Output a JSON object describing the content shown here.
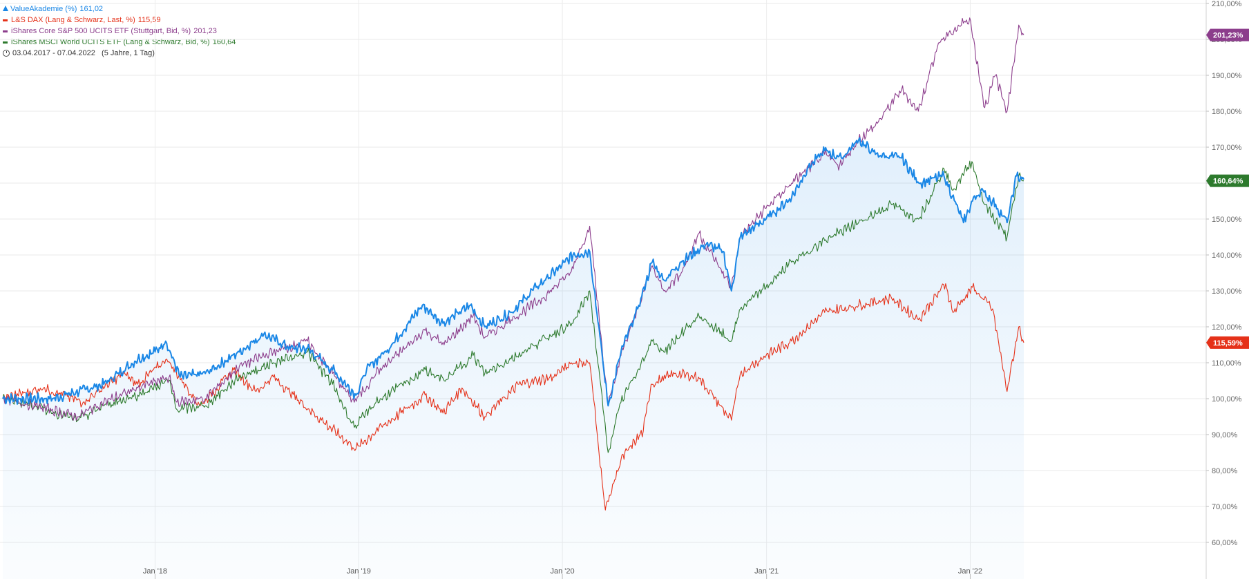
{
  "legend": {
    "items": [
      {
        "name": "ValueAkademie (%)",
        "value": "161,02",
        "color": "#1a87e6",
        "marker": "area-icon"
      },
      {
        "name": "L&S DAX (Lang & Schwarz, Last, %)",
        "value": "115,59",
        "color": "#e53119",
        "marker": "line-icon"
      },
      {
        "name": "iShares Core S&P 500 UCITS ETF (Stuttgart, Bid, %)",
        "value": "201,23",
        "color": "#8c3d8c",
        "marker": "line-icon"
      },
      {
        "name": "iShares MSCI World UCITS ETF (Lang & Schwarz, Bid, %)",
        "value": "160,64",
        "color": "#2d7a2d",
        "marker": "line-icon"
      }
    ],
    "date_range": "03.04.2017 - 07.04.2022   (5 Jahre, 1 Tag)"
  },
  "chart_data": {
    "type": "line",
    "x_ticks": [
      "Jan '18",
      "Jan '19",
      "Jan '20",
      "Jan '21",
      "Jan '22"
    ],
    "y_ticks": [
      "60,00%",
      "70,00%",
      "80,00%",
      "90,00%",
      "100,00%",
      "110,00%",
      "120,00%",
      "130,00%",
      "140,00%",
      "150,00%",
      "160,00%",
      "170,00%",
      "180,00%",
      "190,00%",
      "200,00%",
      "210,00%"
    ],
    "ylim": [
      57.5,
      215
    ],
    "xlim": [
      "2017-04-03",
      "2022-04-07"
    ],
    "grid": true,
    "series": [
      {
        "name": "ValueAkademie (%)",
        "color": "#1a87e6",
        "style": "area",
        "last_label": "",
        "points": [
          [
            "2017-04-03",
            100
          ],
          [
            "2017-07-01",
            100
          ],
          [
            "2017-10-01",
            104
          ],
          [
            "2017-12-01",
            111
          ],
          [
            "2018-01-01",
            113
          ],
          [
            "2018-01-20",
            116
          ],
          [
            "2018-02-15",
            106
          ],
          [
            "2018-04-01",
            107
          ],
          [
            "2018-06-01",
            113
          ],
          [
            "2018-07-15",
            118
          ],
          [
            "2018-09-01",
            114
          ],
          [
            "2018-10-01",
            114
          ],
          [
            "2018-11-15",
            108
          ],
          [
            "2018-12-27",
            101
          ],
          [
            "2019-01-15",
            108
          ],
          [
            "2019-03-01",
            115
          ],
          [
            "2019-04-25",
            126
          ],
          [
            "2019-06-01",
            121
          ],
          [
            "2019-07-20",
            126
          ],
          [
            "2019-08-15",
            120
          ],
          [
            "2019-10-01",
            124
          ],
          [
            "2019-11-15",
            131
          ],
          [
            "2019-12-31",
            137
          ],
          [
            "2020-01-20",
            140
          ],
          [
            "2020-02-19",
            141
          ],
          [
            "2020-03-23",
            98
          ],
          [
            "2020-04-15",
            113
          ],
          [
            "2020-05-15",
            125
          ],
          [
            "2020-06-10",
            138
          ],
          [
            "2020-07-01",
            133
          ],
          [
            "2020-08-01",
            138
          ],
          [
            "2020-09-15",
            143
          ],
          [
            "2020-10-15",
            141
          ],
          [
            "2020-10-30",
            130
          ],
          [
            "2020-11-15",
            145
          ],
          [
            "2020-12-31",
            150
          ],
          [
            "2021-02-15",
            156
          ],
          [
            "2021-03-15",
            164
          ],
          [
            "2021-04-15",
            169
          ],
          [
            "2021-05-15",
            167
          ],
          [
            "2021-06-15",
            172
          ],
          [
            "2021-07-15",
            168
          ],
          [
            "2021-08-31",
            167
          ],
          [
            "2021-10-01",
            160
          ],
          [
            "2021-11-15",
            162
          ],
          [
            "2021-12-20",
            149
          ],
          [
            "2022-01-05",
            155
          ],
          [
            "2022-01-20",
            158
          ],
          [
            "2022-02-10",
            155
          ],
          [
            "2022-03-08",
            149
          ],
          [
            "2022-03-25",
            162
          ],
          [
            "2022-04-07",
            161.02
          ]
        ]
      },
      {
        "name": "L&S DAX (Lang & Schwarz, Last, %)",
        "color": "#e53119",
        "style": "line",
        "last_label": "115,59%",
        "points": [
          [
            "2017-04-03",
            100
          ],
          [
            "2017-06-15",
            103
          ],
          [
            "2017-08-25",
            99
          ],
          [
            "2017-11-05",
            107
          ],
          [
            "2017-12-01",
            104
          ],
          [
            "2018-01-22",
            111
          ],
          [
            "2018-03-23",
            98
          ],
          [
            "2018-05-22",
            108
          ],
          [
            "2018-07-01",
            102
          ],
          [
            "2018-08-01",
            106
          ],
          [
            "2018-10-26",
            94
          ],
          [
            "2018-12-27",
            86
          ],
          [
            "2019-02-01",
            91
          ],
          [
            "2019-04-30",
            101
          ],
          [
            "2019-06-01",
            96
          ],
          [
            "2019-07-05",
            103
          ],
          [
            "2019-08-15",
            95
          ],
          [
            "2019-10-15",
            104
          ],
          [
            "2019-12-15",
            106
          ],
          [
            "2020-01-17",
            110
          ],
          [
            "2020-02-19",
            110
          ],
          [
            "2020-03-18",
            69
          ],
          [
            "2020-04-15",
            83
          ],
          [
            "2020-05-25",
            91
          ],
          [
            "2020-06-08",
            104
          ],
          [
            "2020-07-20",
            107
          ],
          [
            "2020-09-01",
            106
          ],
          [
            "2020-10-30",
            94
          ],
          [
            "2020-11-15",
            107
          ],
          [
            "2020-12-31",
            112
          ],
          [
            "2021-02-15",
            116
          ],
          [
            "2021-04-15",
            124
          ],
          [
            "2021-06-15",
            126
          ],
          [
            "2021-08-13",
            128
          ],
          [
            "2021-09-30",
            122
          ],
          [
            "2021-11-18",
            132
          ],
          [
            "2021-12-01",
            124
          ],
          [
            "2022-01-05",
            131
          ],
          [
            "2022-02-10",
            125
          ],
          [
            "2022-03-08",
            102
          ],
          [
            "2022-03-29",
            120
          ],
          [
            "2022-04-07",
            115.59
          ]
        ]
      },
      {
        "name": "iShares Core S&P 500 UCITS ETF (Stuttgart, Bid, %)",
        "color": "#8c3d8c",
        "style": "line",
        "last_label": "201,23%",
        "points": [
          [
            "2017-04-03",
            100
          ],
          [
            "2017-06-01",
            98
          ],
          [
            "2017-08-15",
            95
          ],
          [
            "2017-10-01",
            99
          ],
          [
            "2017-12-01",
            103
          ],
          [
            "2018-01-26",
            106
          ],
          [
            "2018-02-09",
            99
          ],
          [
            "2018-04-01",
            100
          ],
          [
            "2018-06-01",
            109
          ],
          [
            "2018-08-01",
            113
          ],
          [
            "2018-10-01",
            116
          ],
          [
            "2018-11-15",
            107
          ],
          [
            "2018-12-24",
            99
          ],
          [
            "2019-02-01",
            107
          ],
          [
            "2019-04-30",
            119
          ],
          [
            "2019-06-03",
            115
          ],
          [
            "2019-07-25",
            123
          ],
          [
            "2019-08-15",
            117
          ],
          [
            "2019-10-01",
            122
          ],
          [
            "2019-11-27",
            128
          ],
          [
            "2020-01-15",
            135
          ],
          [
            "2020-02-19",
            148
          ],
          [
            "2020-03-23",
            98
          ],
          [
            "2020-04-15",
            112
          ],
          [
            "2020-05-15",
            125
          ],
          [
            "2020-06-10",
            137
          ],
          [
            "2020-07-01",
            130
          ],
          [
            "2020-08-01",
            135
          ],
          [
            "2020-09-02",
            146
          ],
          [
            "2020-10-30",
            131
          ],
          [
            "2020-11-15",
            145
          ],
          [
            "2020-12-31",
            153
          ],
          [
            "2021-02-15",
            160
          ],
          [
            "2021-04-15",
            168
          ],
          [
            "2021-05-12",
            165
          ],
          [
            "2021-06-15",
            172
          ],
          [
            "2021-07-15",
            176
          ],
          [
            "2021-08-31",
            186
          ],
          [
            "2021-09-30",
            180
          ],
          [
            "2021-11-05",
            199
          ],
          [
            "2021-12-31",
            206
          ],
          [
            "2022-01-27",
            181
          ],
          [
            "2022-02-15",
            190
          ],
          [
            "2022-03-08",
            180
          ],
          [
            "2022-03-29",
            204
          ],
          [
            "2022-04-07",
            201.23
          ]
        ]
      },
      {
        "name": "iShares MSCI World UCITS ETF (Lang & Schwarz, Bid, %)",
        "color": "#2d7a2d",
        "style": "line",
        "last_label": "160,64%",
        "points": [
          [
            "2017-04-03",
            100
          ],
          [
            "2017-06-01",
            98
          ],
          [
            "2017-08-15",
            94
          ],
          [
            "2017-10-01",
            98
          ],
          [
            "2017-12-01",
            101
          ],
          [
            "2018-01-26",
            105
          ],
          [
            "2018-02-09",
            97
          ],
          [
            "2018-04-01",
            98
          ],
          [
            "2018-06-01",
            106
          ],
          [
            "2018-08-01",
            110
          ],
          [
            "2018-10-01",
            113
          ],
          [
            "2018-11-15",
            104
          ],
          [
            "2018-12-24",
            92
          ],
          [
            "2019-02-01",
            99
          ],
          [
            "2019-04-30",
            108
          ],
          [
            "2019-06-03",
            105
          ],
          [
            "2019-07-25",
            112
          ],
          [
            "2019-08-15",
            107
          ],
          [
            "2019-10-01",
            111
          ],
          [
            "2019-12-15",
            118
          ],
          [
            "2020-01-20",
            121
          ],
          [
            "2020-02-19",
            130
          ],
          [
            "2020-03-23",
            85
          ],
          [
            "2020-04-15",
            99
          ],
          [
            "2020-05-15",
            108
          ],
          [
            "2020-06-10",
            116
          ],
          [
            "2020-07-01",
            113
          ],
          [
            "2020-08-01",
            118
          ],
          [
            "2020-09-02",
            123
          ],
          [
            "2020-10-30",
            116
          ],
          [
            "2020-11-15",
            125
          ],
          [
            "2020-12-31",
            131
          ],
          [
            "2021-02-15",
            138
          ],
          [
            "2021-04-15",
            144
          ],
          [
            "2021-06-15",
            149
          ],
          [
            "2021-08-13",
            154
          ],
          [
            "2021-09-30",
            150
          ],
          [
            "2021-11-15",
            164
          ],
          [
            "2021-12-01",
            158
          ],
          [
            "2022-01-04",
            166
          ],
          [
            "2022-01-27",
            154
          ],
          [
            "2022-03-08",
            145
          ],
          [
            "2022-03-29",
            162
          ],
          [
            "2022-04-07",
            160.64
          ]
        ]
      }
    ]
  }
}
